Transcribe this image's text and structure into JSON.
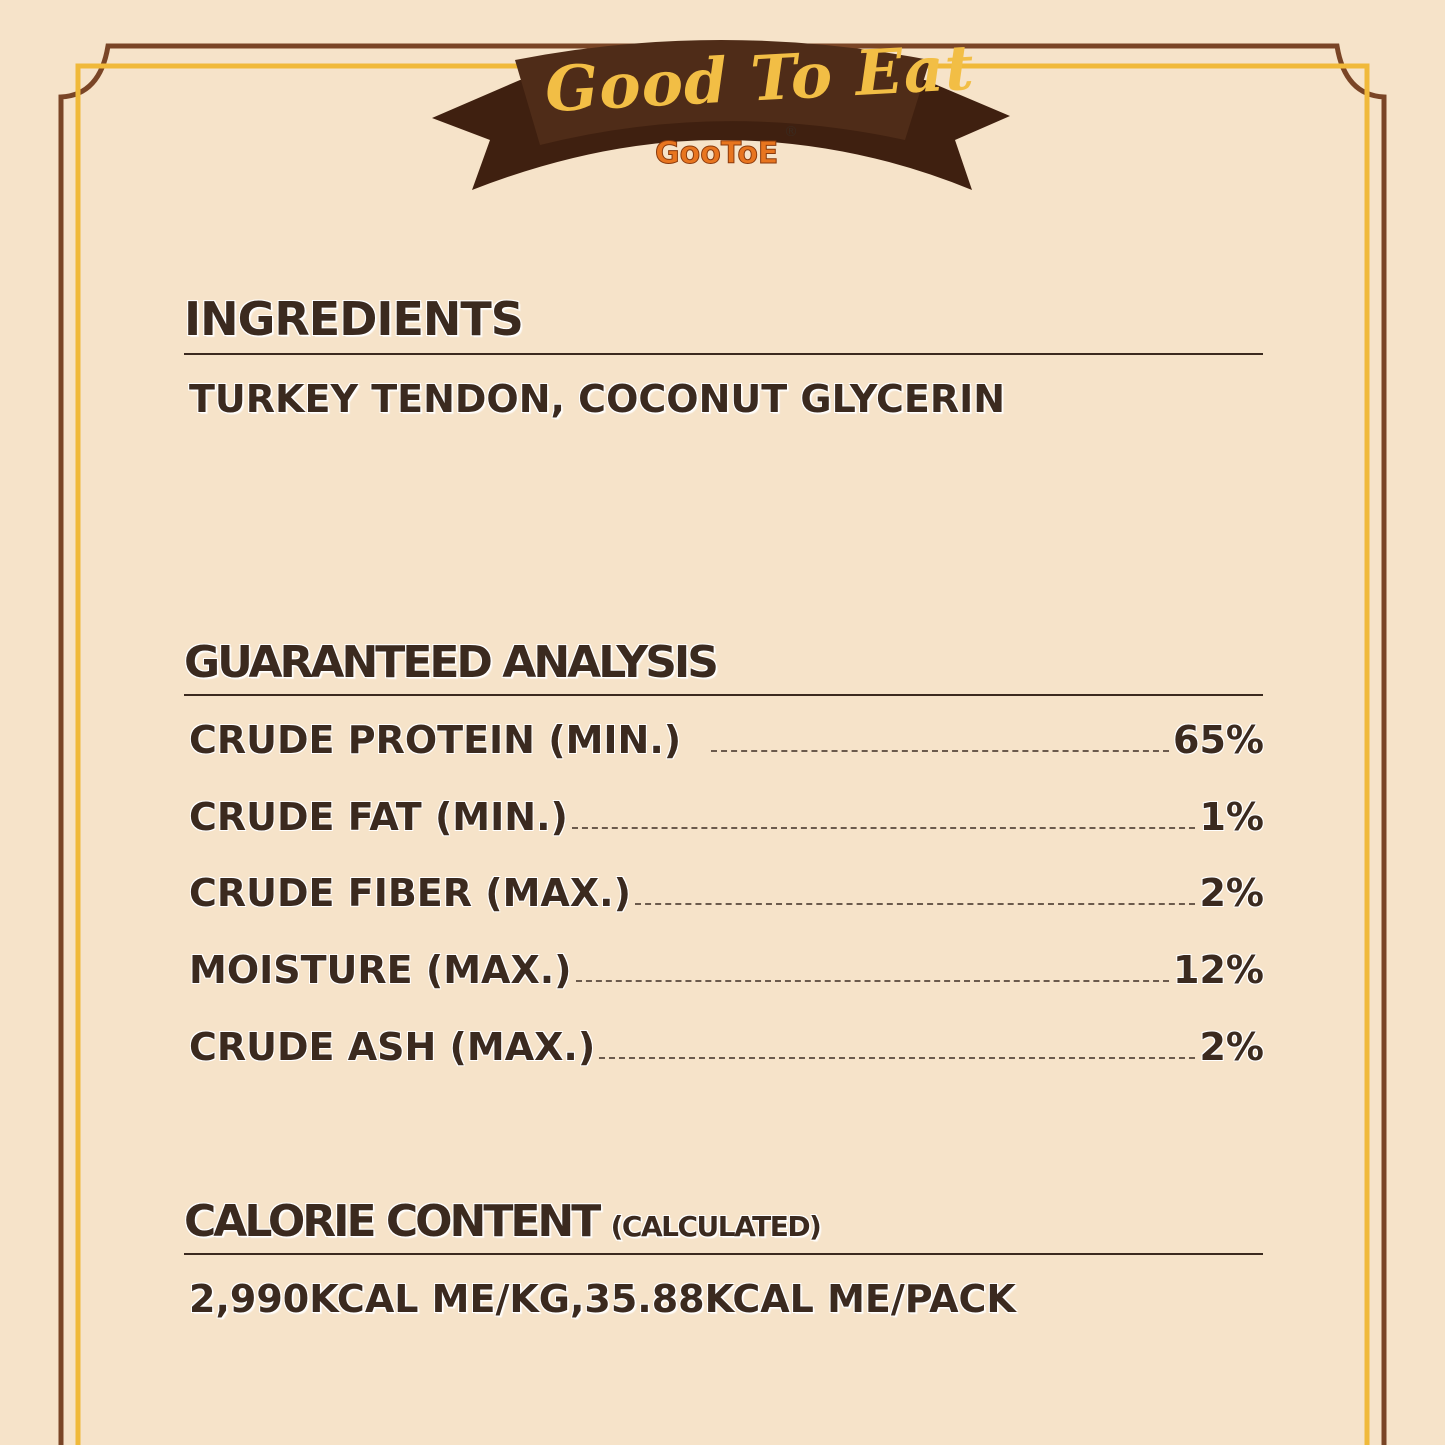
{
  "banner": {
    "title": "Good To Eat",
    "brand": "GooToE",
    "registered": "®"
  },
  "colors": {
    "background": "#f6e3c9",
    "border_brown": "#7a4526",
    "border_yellow": "#f0b93a",
    "banner_brown": "#4a2816",
    "text": "#3b2a1f",
    "brand_orange": "#e8751f"
  },
  "ingredients": {
    "heading": "INGREDIENTS",
    "text": "TURKEY TENDON, COCONUT GLYCERIN"
  },
  "analysis": {
    "heading": "GUARANTEED ANALYSIS",
    "rows": [
      {
        "label": "CRUDE PROTEIN (MIN.)",
        "value": "65%"
      },
      {
        "label": "CRUDE FAT (MIN.)",
        "value": "1%"
      },
      {
        "label": "CRUDE FIBER (MAX.)",
        "value": "2%"
      },
      {
        "label": "MOISTURE (MAX.)",
        "value": "12%"
      },
      {
        "label": "CRUDE ASH (MAX.)",
        "value": "2%"
      }
    ]
  },
  "calorie": {
    "heading": "CALORIE CONTENT",
    "subheading": "(CALCULATED)",
    "text": "2,990KCAL ME/KG,35.88KCAL ME/PACK"
  }
}
